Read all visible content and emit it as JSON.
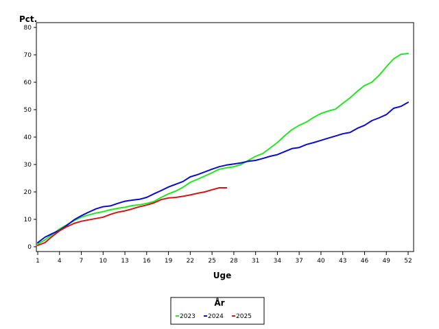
{
  "chart_data": {
    "type": "line",
    "title": "",
    "xlabel": "Uge",
    "ylabel": "Pct.",
    "xlim": [
      1,
      52
    ],
    "ylim": [
      0,
      80
    ],
    "x_ticks": [
      1,
      4,
      7,
      10,
      13,
      16,
      19,
      22,
      25,
      28,
      31,
      34,
      37,
      40,
      43,
      46,
      49,
      52
    ],
    "y_ticks": [
      0,
      10,
      20,
      30,
      40,
      50,
      60,
      70,
      80
    ],
    "grid": false,
    "legend": {
      "title": "År",
      "placement": "bottom-center"
    },
    "series": [
      {
        "name": "2023",
        "color": "#22e622",
        "x": [
          1,
          2,
          3,
          4,
          5,
          6,
          7,
          8,
          9,
          10,
          11,
          12,
          13,
          14,
          15,
          16,
          17,
          18,
          19,
          20,
          21,
          22,
          23,
          24,
          25,
          26,
          27,
          28,
          29,
          30,
          31,
          32,
          33,
          34,
          35,
          36,
          37,
          38,
          39,
          40,
          41,
          42,
          43,
          44,
          45,
          46,
          47,
          48,
          49,
          50,
          51,
          52
        ],
        "values": [
          1.0,
          2.5,
          4.5,
          6.5,
          8.0,
          9.5,
          10.8,
          11.6,
          12.3,
          12.8,
          13.5,
          14.0,
          14.4,
          15.0,
          15.3,
          15.8,
          16.5,
          18.0,
          19.3,
          20.3,
          21.7,
          23.5,
          24.6,
          25.8,
          27.0,
          28.3,
          28.8,
          29.2,
          30.0,
          31.5,
          33.0,
          34.0,
          36.0,
          38.0,
          40.5,
          42.7,
          44.3,
          45.5,
          47.2,
          48.6,
          49.5,
          50.2,
          52.3,
          54.3,
          56.7,
          58.8,
          60.0,
          62.5,
          65.6,
          68.5,
          70.2,
          70.5
        ]
      },
      {
        "name": "2024",
        "color": "#0a0acd",
        "x": [
          1,
          2,
          3,
          4,
          5,
          6,
          7,
          8,
          9,
          10,
          11,
          12,
          13,
          14,
          15,
          16,
          17,
          18,
          19,
          20,
          21,
          22,
          23,
          24,
          25,
          26,
          27,
          28,
          29,
          30,
          31,
          32,
          33,
          34,
          35,
          36,
          37,
          38,
          39,
          40,
          41,
          42,
          43,
          44,
          45,
          46,
          47,
          48,
          49,
          50,
          51,
          52
        ],
        "values": [
          1.5,
          3.5,
          4.8,
          6.0,
          7.8,
          9.8,
          11.3,
          12.6,
          13.8,
          14.6,
          14.9,
          15.8,
          16.6,
          17.0,
          17.3,
          18.0,
          19.3,
          20.5,
          21.8,
          22.8,
          23.8,
          25.5,
          26.3,
          27.3,
          28.3,
          29.2,
          29.8,
          30.2,
          30.6,
          31.2,
          31.5,
          32.2,
          33.0,
          33.6,
          34.7,
          35.8,
          36.2,
          37.3,
          38.0,
          38.8,
          39.6,
          40.4,
          41.2,
          41.7,
          43.2,
          44.3,
          46.0,
          47.0,
          48.2,
          50.5,
          51.2,
          52.7
        ]
      },
      {
        "name": "2025",
        "color": "#d21414",
        "x": [
          1,
          2,
          3,
          4,
          5,
          6,
          7,
          8,
          9,
          10,
          11,
          12,
          13,
          14,
          15,
          16,
          17,
          18,
          19,
          20,
          21,
          22,
          23,
          24,
          25,
          26,
          27
        ],
        "values": [
          0.5,
          1.5,
          3.8,
          5.8,
          7.3,
          8.5,
          9.3,
          9.8,
          10.3,
          10.8,
          11.8,
          12.6,
          13.1,
          13.8,
          14.6,
          15.2,
          16.0,
          17.2,
          17.8,
          18.0,
          18.4,
          18.9,
          19.5,
          20.0,
          20.8,
          21.5,
          21.5
        ]
      }
    ]
  }
}
